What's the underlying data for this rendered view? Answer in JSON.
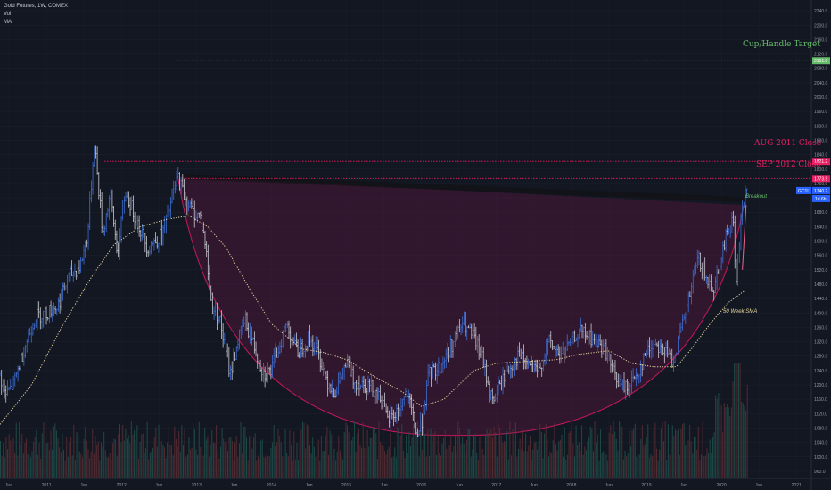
{
  "header": {
    "title": "Gold Futures, 1W, COMEX",
    "vol_label": "Vol",
    "ma_label": "MA"
  },
  "annotations": {
    "cup_target": "Cup/Handle Target",
    "aug_close": "AUG 2011 Close",
    "sep_close": "SEP 2012 Close",
    "breakout": "Breakout",
    "sma_label": "50 Week SMA"
  },
  "price_tags": {
    "cup_target": "2101.0",
    "aug_close": "1821.2",
    "sep_close": "1773.9",
    "current_label": "GC1!",
    "current_value": "1740.2",
    "time_left": "1d 6h"
  },
  "colors": {
    "background": "#131722",
    "up_bar": "#3d6fd6",
    "down_bar": "#c8cad1",
    "sma": "#e8d9a0",
    "cup": "#c2185b",
    "cup_fill": "#4a1838",
    "target": "#66bb6a",
    "resistance": "#e91e63"
  },
  "chart_data": {
    "type": "candlestick",
    "title": "Gold Futures, 1W, COMEX",
    "x_tick_labels": [
      "Jun",
      "2011",
      "Jun",
      "2012",
      "Jun",
      "2013",
      "Jun",
      "2014",
      "Jun",
      "2015",
      "Jun",
      "2016",
      "Jun",
      "2017",
      "Jun",
      "2018",
      "Jun",
      "2019",
      "Jun",
      "2020",
      "Jun",
      "2021"
    ],
    "y_tick_labels": [
      "2240.0",
      "2200.0",
      "2160.0",
      "2120.0",
      "2080.0",
      "2040.0",
      "2000.0",
      "1960.0",
      "1920.0",
      "1880.0",
      "1840.0",
      "1800.0",
      "1760.0",
      "1720.0",
      "1680.0",
      "1640.0",
      "1600.0",
      "1560.0",
      "1520.0",
      "1480.0",
      "1440.0",
      "1400.0",
      "1360.0",
      "1320.0",
      "1280.0",
      "1240.0",
      "1200.0",
      "1160.0",
      "1120.0",
      "1080.0",
      "1040.0",
      "1000.0",
      "960.0"
    ],
    "ylim": [
      940,
      2270
    ],
    "xlim": [
      2010.38,
      2021.2
    ],
    "price_keypoints": [
      [
        2010.38,
        1230
      ],
      [
        2010.45,
        1170
      ],
      [
        2010.56,
        1200
      ],
      [
        2010.7,
        1300
      ],
      [
        2010.85,
        1390
      ],
      [
        2011.0,
        1400
      ],
      [
        2011.15,
        1420
      ],
      [
        2011.3,
        1500
      ],
      [
        2011.45,
        1530
      ],
      [
        2011.55,
        1620
      ],
      [
        2011.64,
        1880
      ],
      [
        2011.68,
        1780
      ],
      [
        2011.75,
        1620
      ],
      [
        2011.85,
        1730
      ],
      [
        2011.95,
        1560
      ],
      [
        2012.05,
        1740
      ],
      [
        2012.12,
        1700
      ],
      [
        2012.2,
        1660
      ],
      [
        2012.35,
        1580
      ],
      [
        2012.45,
        1600
      ],
      [
        2012.55,
        1620
      ],
      [
        2012.65,
        1700
      ],
      [
        2012.75,
        1780
      ],
      [
        2012.85,
        1720
      ],
      [
        2012.95,
        1680
      ],
      [
        2013.05,
        1670
      ],
      [
        2013.12,
        1590
      ],
      [
        2013.2,
        1420
      ],
      [
        2013.3,
        1390
      ],
      [
        2013.45,
        1230
      ],
      [
        2013.55,
        1320
      ],
      [
        2013.65,
        1380
      ],
      [
        2013.78,
        1300
      ],
      [
        2013.9,
        1230
      ],
      [
        2014.0,
        1240
      ],
      [
        2014.12,
        1320
      ],
      [
        2014.2,
        1370
      ],
      [
        2014.35,
        1290
      ],
      [
        2014.5,
        1330
      ],
      [
        2014.6,
        1300
      ],
      [
        2014.75,
        1210
      ],
      [
        2014.85,
        1180
      ],
      [
        2015.0,
        1260
      ],
      [
        2015.1,
        1210
      ],
      [
        2015.3,
        1200
      ],
      [
        2015.45,
        1170
      ],
      [
        2015.55,
        1100
      ],
      [
        2015.7,
        1130
      ],
      [
        2015.8,
        1180
      ],
      [
        2015.95,
        1060
      ],
      [
        2016.0,
        1090
      ],
      [
        2016.1,
        1230
      ],
      [
        2016.25,
        1250
      ],
      [
        2016.45,
        1330
      ],
      [
        2016.55,
        1370
      ],
      [
        2016.7,
        1330
      ],
      [
        2016.8,
        1280
      ],
      [
        2016.95,
        1150
      ],
      [
        2017.0,
        1180
      ],
      [
        2017.15,
        1240
      ],
      [
        2017.3,
        1280
      ],
      [
        2017.45,
        1250
      ],
      [
        2017.55,
        1230
      ],
      [
        2017.7,
        1320
      ],
      [
        2017.85,
        1280
      ],
      [
        2017.98,
        1310
      ],
      [
        2018.1,
        1350
      ],
      [
        2018.25,
        1330
      ],
      [
        2018.45,
        1300
      ],
      [
        2018.55,
        1240
      ],
      [
        2018.65,
        1200
      ],
      [
        2018.75,
        1190
      ],
      [
        2018.9,
        1240
      ],
      [
        2019.0,
        1290
      ],
      [
        2019.12,
        1320
      ],
      [
        2019.25,
        1290
      ],
      [
        2019.35,
        1270
      ],
      [
        2019.45,
        1340
      ],
      [
        2019.55,
        1420
      ],
      [
        2019.65,
        1520
      ],
      [
        2019.7,
        1550
      ],
      [
        2019.8,
        1490
      ],
      [
        2019.9,
        1470
      ],
      [
        2020.0,
        1560
      ],
      [
        2020.1,
        1640
      ],
      [
        2020.15,
        1680
      ],
      [
        2020.2,
        1480
      ],
      [
        2020.22,
        1540
      ],
      [
        2020.28,
        1700
      ],
      [
        2020.34,
        1740
      ]
    ],
    "sma_keypoints": [
      [
        2010.38,
        1090
      ],
      [
        2010.8,
        1200
      ],
      [
        2011.2,
        1360
      ],
      [
        2011.6,
        1500
      ],
      [
        2011.9,
        1590
      ],
      [
        2012.25,
        1640
      ],
      [
        2012.6,
        1660
      ],
      [
        2012.9,
        1670
      ],
      [
        2013.15,
        1640
      ],
      [
        2013.4,
        1580
      ],
      [
        2013.7,
        1470
      ],
      [
        2014.0,
        1370
      ],
      [
        2014.4,
        1300
      ],
      [
        2014.7,
        1290
      ],
      [
        2015.0,
        1270
      ],
      [
        2015.4,
        1220
      ],
      [
        2015.75,
        1180
      ],
      [
        2016.0,
        1140
      ],
      [
        2016.3,
        1160
      ],
      [
        2016.7,
        1240
      ],
      [
        2017.0,
        1260
      ],
      [
        2017.4,
        1265
      ],
      [
        2017.8,
        1270
      ],
      [
        2018.1,
        1285
      ],
      [
        2018.5,
        1295
      ],
      [
        2018.8,
        1260
      ],
      [
        2019.1,
        1250
      ],
      [
        2019.4,
        1250
      ],
      [
        2019.6,
        1300
      ],
      [
        2019.85,
        1370
      ],
      [
        2020.1,
        1430
      ],
      [
        2020.3,
        1460
      ]
    ],
    "cup": {
      "start": [
        2012.75,
        1780
      ],
      "bottom": [
        2016.45,
        1060
      ],
      "end": [
        2020.3,
        1700
      ]
    },
    "levels": {
      "cup_target": 2101.0,
      "aug_close": 1821.2,
      "sep_close": 1773.9
    },
    "current_price": 1740.2
  }
}
